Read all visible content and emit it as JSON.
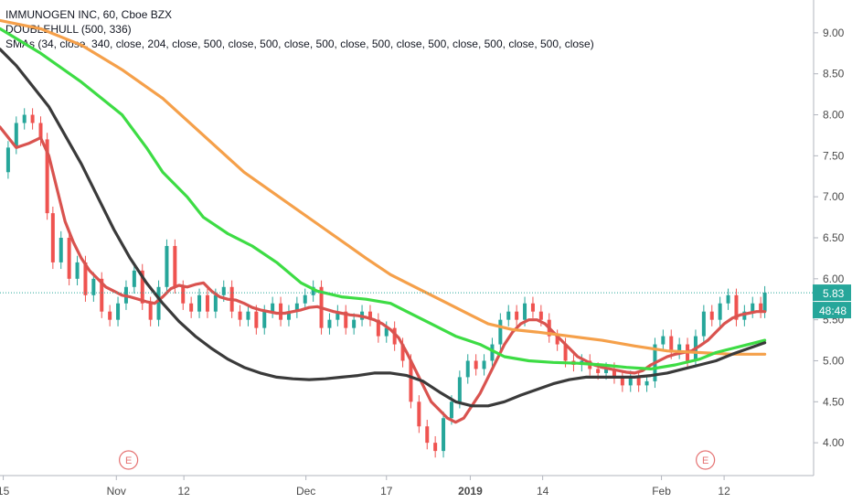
{
  "legend": {
    "title": "IMMUNOGEN INC, 60, Cboe BZX",
    "doublehull": "DOUBLEHULL (500, 336)",
    "smas": "SMAs (34, close, 340, close, 204, close, 500, close, 500, close, 500, close, 500, close, 500, close, 500, close, 500, close)"
  },
  "colors": {
    "up": "#26a69a",
    "down": "#ef5350",
    "sma_red": "#d9534f",
    "sma_orange": "#f5a04a",
    "sma_green": "#3ddc44",
    "sma_black": "#3a3a3a",
    "price_label": "#26a69a",
    "countdown_label": "#26a69a",
    "earnings": "#e57373"
  },
  "price_label": "5.83",
  "countdown_label": "48:48",
  "earnings_marker": "E",
  "chart_data": {
    "type": "line",
    "title": "IMMUNOGEN INC, 60, Cboe BZX",
    "ylim": [
      3.6,
      9.4
    ],
    "xlim": [
      0,
      100
    ],
    "yticks": [
      4.0,
      4.5,
      5.0,
      5.5,
      6.0,
      6.5,
      7.0,
      7.5,
      8.0,
      8.5,
      9.0
    ],
    "ytick_labels": [
      "4.00",
      "4.50",
      "5.00",
      "5.50",
      "6.00",
      "6.50",
      "7.00",
      "7.50",
      "8.00",
      "8.50",
      "9.00"
    ],
    "xticks": [
      {
        "x": 0.4,
        "label": "15"
      },
      {
        "x": 14.3,
        "label": "Nov"
      },
      {
        "x": 22.6,
        "label": "12"
      },
      {
        "x": 37.6,
        "label": "Dec"
      },
      {
        "x": 47.5,
        "label": "17"
      },
      {
        "x": 57.8,
        "label": "2019"
      },
      {
        "x": 66.7,
        "label": "14"
      },
      {
        "x": 81.3,
        "label": "Feb"
      },
      {
        "x": 89.0,
        "label": "12"
      }
    ],
    "earnings_x": [
      15.8,
      86.7
    ],
    "last_price": 5.83,
    "price_series": [
      [
        0,
        7.3
      ],
      [
        1,
        7.6
      ],
      [
        2,
        7.9
      ],
      [
        3,
        8.0
      ],
      [
        4,
        7.9
      ],
      [
        5,
        7.7
      ],
      [
        5.8,
        6.8
      ],
      [
        6.5,
        6.2
      ],
      [
        7.5,
        6.5
      ],
      [
        8.5,
        6.0
      ],
      [
        9.5,
        6.2
      ],
      [
        10.5,
        5.8
      ],
      [
        11.5,
        6.0
      ],
      [
        12.5,
        5.6
      ],
      [
        13.5,
        5.5
      ],
      [
        14.5,
        5.7
      ],
      [
        15.5,
        5.9
      ],
      [
        16.5,
        6.1
      ],
      [
        17.5,
        5.7
      ],
      [
        18.5,
        5.5
      ],
      [
        19.5,
        5.9
      ],
      [
        20.5,
        6.4
      ],
      [
        21.5,
        5.9
      ],
      [
        22.5,
        5.7
      ],
      [
        23.5,
        5.6
      ],
      [
        24.5,
        5.8
      ],
      [
        25.5,
        5.6
      ],
      [
        26.5,
        5.8
      ],
      [
        27.5,
        5.9
      ],
      [
        28.5,
        5.6
      ],
      [
        29.5,
        5.5
      ],
      [
        30.5,
        5.6
      ],
      [
        31.5,
        5.4
      ],
      [
        32.5,
        5.6
      ],
      [
        33.5,
        5.7
      ],
      [
        34.5,
        5.5
      ],
      [
        35.5,
        5.6
      ],
      [
        36.5,
        5.7
      ],
      [
        37.5,
        5.8
      ],
      [
        38.5,
        5.9
      ],
      [
        39.5,
        5.4
      ],
      [
        40.5,
        5.5
      ],
      [
        41.5,
        5.6
      ],
      [
        42.5,
        5.4
      ],
      [
        43.5,
        5.5
      ],
      [
        44.5,
        5.6
      ],
      [
        45.5,
        5.5
      ],
      [
        46.5,
        5.3
      ],
      [
        47.5,
        5.4
      ],
      [
        48.5,
        5.2
      ],
      [
        49.5,
        5.0
      ],
      [
        50.5,
        4.5
      ],
      [
        51.5,
        4.2
      ],
      [
        52.5,
        4.0
      ],
      [
        53.5,
        3.9
      ],
      [
        54.5,
        4.3
      ],
      [
        55.5,
        4.5
      ],
      [
        56.5,
        4.8
      ],
      [
        57.5,
        5.0
      ],
      [
        58.5,
        4.9
      ],
      [
        59.5,
        5.0
      ],
      [
        60.5,
        5.2
      ],
      [
        61.5,
        5.5
      ],
      [
        62.5,
        5.6
      ],
      [
        63.5,
        5.5
      ],
      [
        64.5,
        5.7
      ],
      [
        65.5,
        5.6
      ],
      [
        66.5,
        5.5
      ],
      [
        67.5,
        5.3
      ],
      [
        68.5,
        5.2
      ],
      [
        69.5,
        5.0
      ],
      [
        70.5,
        4.95
      ],
      [
        71.5,
        5.0
      ],
      [
        72.5,
        4.9
      ],
      [
        73.5,
        4.85
      ],
      [
        74.5,
        4.9
      ],
      [
        75.5,
        4.8
      ],
      [
        76.5,
        4.7
      ],
      [
        77.5,
        4.8
      ],
      [
        78.5,
        4.7
      ],
      [
        79.5,
        4.75
      ],
      [
        80.5,
        5.2
      ],
      [
        81.5,
        5.3
      ],
      [
        82.5,
        5.1
      ],
      [
        83.5,
        5.2
      ],
      [
        84.5,
        5.0
      ],
      [
        85.5,
        5.3
      ],
      [
        86.5,
        5.6
      ],
      [
        87.5,
        5.5
      ],
      [
        88.5,
        5.7
      ],
      [
        89.5,
        5.8
      ],
      [
        90.5,
        5.5
      ],
      [
        91.5,
        5.6
      ],
      [
        92.5,
        5.7
      ],
      [
        93.5,
        5.6
      ],
      [
        94,
        5.83
      ]
    ],
    "series": [
      {
        "color": "#d9534f",
        "values": [
          [
            0,
            7.85
          ],
          [
            2,
            7.6
          ],
          [
            3.5,
            7.65
          ],
          [
            5,
            7.72
          ],
          [
            6,
            7.5
          ],
          [
            7,
            7.1
          ],
          [
            8,
            6.7
          ],
          [
            9,
            6.45
          ],
          [
            10,
            6.25
          ],
          [
            11,
            6.1
          ],
          [
            12,
            6.0
          ],
          [
            13,
            5.9
          ],
          [
            14,
            5.85
          ],
          [
            15,
            5.8
          ],
          [
            16,
            5.78
          ],
          [
            17,
            5.75
          ],
          [
            18,
            5.72
          ],
          [
            19,
            5.7
          ],
          [
            20,
            5.78
          ],
          [
            21,
            5.88
          ],
          [
            22,
            5.92
          ],
          [
            23,
            5.9
          ],
          [
            24,
            5.93
          ],
          [
            25,
            5.95
          ],
          [
            26,
            5.85
          ],
          [
            27,
            5.78
          ],
          [
            28,
            5.75
          ],
          [
            29,
            5.74
          ],
          [
            30,
            5.7
          ],
          [
            31,
            5.65
          ],
          [
            32,
            5.62
          ],
          [
            33,
            5.6
          ],
          [
            34,
            5.58
          ],
          [
            35,
            5.58
          ],
          [
            36,
            5.6
          ],
          [
            37,
            5.62
          ],
          [
            38,
            5.65
          ],
          [
            39,
            5.66
          ],
          [
            40,
            5.63
          ],
          [
            41,
            5.6
          ],
          [
            42,
            5.58
          ],
          [
            43,
            5.56
          ],
          [
            44,
            5.55
          ],
          [
            45,
            5.53
          ],
          [
            46,
            5.5
          ],
          [
            47,
            5.45
          ],
          [
            48,
            5.38
          ],
          [
            49,
            5.28
          ],
          [
            50,
            5.1
          ],
          [
            51,
            4.9
          ],
          [
            52,
            4.7
          ],
          [
            53,
            4.5
          ],
          [
            54,
            4.4
          ],
          [
            55,
            4.3
          ],
          [
            56,
            4.25
          ],
          [
            57,
            4.3
          ],
          [
            58,
            4.45
          ],
          [
            59,
            4.6
          ],
          [
            60,
            4.8
          ],
          [
            61,
            5.0
          ],
          [
            62,
            5.2
          ],
          [
            63,
            5.35
          ],
          [
            64,
            5.45
          ],
          [
            65,
            5.5
          ],
          [
            66,
            5.5
          ],
          [
            67,
            5.45
          ],
          [
            68,
            5.35
          ],
          [
            69,
            5.25
          ],
          [
            70,
            5.15
          ],
          [
            71,
            5.05
          ],
          [
            72,
            5.0
          ],
          [
            73,
            4.95
          ],
          [
            74,
            4.92
          ],
          [
            75,
            4.9
          ],
          [
            76,
            4.88
          ],
          [
            77,
            4.86
          ],
          [
            78,
            4.85
          ],
          [
            79,
            4.88
          ],
          [
            80,
            4.95
          ],
          [
            81,
            5.0
          ],
          [
            82,
            5.05
          ],
          [
            83,
            5.08
          ],
          [
            84,
            5.1
          ],
          [
            85,
            5.12
          ],
          [
            86,
            5.18
          ],
          [
            87,
            5.25
          ],
          [
            88,
            5.35
          ],
          [
            89,
            5.45
          ],
          [
            90,
            5.52
          ],
          [
            91,
            5.56
          ],
          [
            92,
            5.58
          ],
          [
            93,
            5.6
          ],
          [
            94,
            5.6
          ]
        ]
      },
      {
        "color": "#f5a04a",
        "values": [
          [
            0,
            9.15
          ],
          [
            5,
            9.05
          ],
          [
            10,
            8.85
          ],
          [
            15,
            8.55
          ],
          [
            20,
            8.2
          ],
          [
            25,
            7.75
          ],
          [
            30,
            7.3
          ],
          [
            35,
            6.95
          ],
          [
            40,
            6.6
          ],
          [
            45,
            6.25
          ],
          [
            48,
            6.05
          ],
          [
            50,
            5.95
          ],
          [
            55,
            5.7
          ],
          [
            58,
            5.55
          ],
          [
            60,
            5.45
          ],
          [
            63,
            5.38
          ],
          [
            66,
            5.35
          ],
          [
            70,
            5.3
          ],
          [
            74,
            5.25
          ],
          [
            78,
            5.18
          ],
          [
            82,
            5.12
          ],
          [
            86,
            5.1
          ],
          [
            90,
            5.08
          ],
          [
            94,
            5.08
          ]
        ]
      },
      {
        "color": "#3ddc44",
        "values": [
          [
            0,
            9.05
          ],
          [
            5,
            8.75
          ],
          [
            10,
            8.4
          ],
          [
            15,
            8.0
          ],
          [
            18,
            7.6
          ],
          [
            20,
            7.3
          ],
          [
            23,
            7.0
          ],
          [
            25,
            6.75
          ],
          [
            28,
            6.55
          ],
          [
            31,
            6.4
          ],
          [
            34,
            6.2
          ],
          [
            37,
            5.95
          ],
          [
            39,
            5.85
          ],
          [
            42,
            5.78
          ],
          [
            45,
            5.75
          ],
          [
            48,
            5.7
          ],
          [
            50,
            5.6
          ],
          [
            53,
            5.45
          ],
          [
            56,
            5.3
          ],
          [
            59,
            5.2
          ],
          [
            62,
            5.05
          ],
          [
            65,
            5.0
          ],
          [
            68,
            4.98
          ],
          [
            71,
            4.97
          ],
          [
            74,
            4.95
          ],
          [
            77,
            4.92
          ],
          [
            80,
            4.9
          ],
          [
            83,
            4.95
          ],
          [
            86,
            5.02
          ],
          [
            88,
            5.1
          ],
          [
            90,
            5.15
          ],
          [
            92,
            5.2
          ],
          [
            94,
            5.25
          ]
        ]
      },
      {
        "color": "#3a3a3a",
        "values": [
          [
            0,
            8.8
          ],
          [
            2,
            8.6
          ],
          [
            4,
            8.35
          ],
          [
            6,
            8.1
          ],
          [
            8,
            7.75
          ],
          [
            10,
            7.4
          ],
          [
            12,
            7.0
          ],
          [
            14,
            6.6
          ],
          [
            16,
            6.25
          ],
          [
            18,
            5.95
          ],
          [
            20,
            5.7
          ],
          [
            22,
            5.48
          ],
          [
            24,
            5.3
          ],
          [
            26,
            5.15
          ],
          [
            28,
            5.02
          ],
          [
            30,
            4.92
          ],
          [
            32,
            4.85
          ],
          [
            34,
            4.8
          ],
          [
            36,
            4.78
          ],
          [
            38,
            4.77
          ],
          [
            40,
            4.78
          ],
          [
            42,
            4.8
          ],
          [
            44,
            4.82
          ],
          [
            46,
            4.85
          ],
          [
            48,
            4.85
          ],
          [
            50,
            4.82
          ],
          [
            52,
            4.75
          ],
          [
            54,
            4.62
          ],
          [
            56,
            4.5
          ],
          [
            58,
            4.45
          ],
          [
            60,
            4.45
          ],
          [
            62,
            4.5
          ],
          [
            64,
            4.58
          ],
          [
            66,
            4.65
          ],
          [
            68,
            4.72
          ],
          [
            70,
            4.77
          ],
          [
            72,
            4.8
          ],
          [
            74,
            4.8
          ],
          [
            76,
            4.8
          ],
          [
            78,
            4.8
          ],
          [
            80,
            4.82
          ],
          [
            82,
            4.85
          ],
          [
            84,
            4.9
          ],
          [
            86,
            4.95
          ],
          [
            88,
            5.0
          ],
          [
            90,
            5.08
          ],
          [
            92,
            5.15
          ],
          [
            94,
            5.22
          ]
        ]
      }
    ]
  }
}
